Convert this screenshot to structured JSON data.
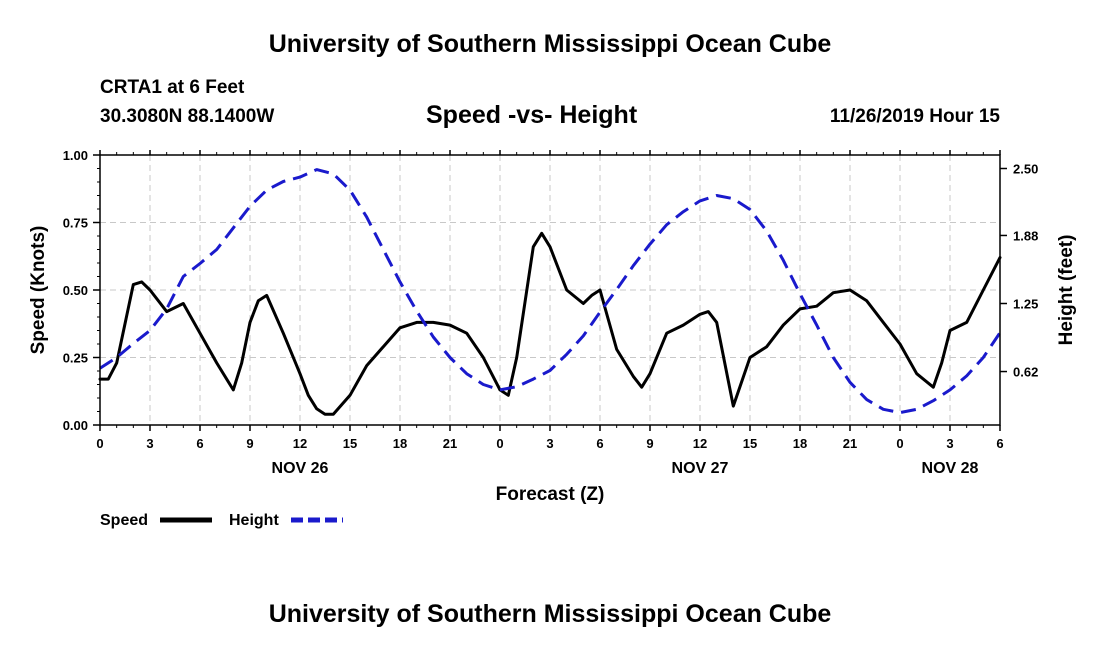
{
  "header": {
    "title": "University of Southern Mississippi Ocean Cube",
    "station": "CRTA1 at 6 Feet",
    "coords": "30.3080N 88.1400W",
    "timestamp": "11/26/2019 Hour 15"
  },
  "footer": {
    "title": "University of Southern Mississippi Ocean Cube"
  },
  "colors": {
    "speed": "#000000",
    "height": "#1a1acc",
    "grid": "#c8c8c8"
  },
  "chart_data": {
    "type": "line",
    "title": "Speed -vs- Height",
    "xlabel": "Forecast (Z)",
    "ylabel": "Speed (Knots)",
    "y2label": "Height (feet)",
    "xlim": [
      0,
      54
    ],
    "ylim": [
      0,
      1.0
    ],
    "y2lim": [
      0.125,
      2.625
    ],
    "x_ticks": [
      0,
      3,
      6,
      9,
      12,
      15,
      18,
      21,
      24,
      27,
      30,
      33,
      36,
      39,
      42,
      45,
      48,
      51,
      54
    ],
    "x_tick_labels": [
      "0",
      "3",
      "6",
      "9",
      "12",
      "15",
      "18",
      "21",
      "0",
      "3",
      "6",
      "9",
      "12",
      "15",
      "18",
      "21",
      "0",
      "3",
      "6"
    ],
    "y_ticks": [
      0,
      0.25,
      0.5,
      0.75,
      1.0
    ],
    "y_tick_labels": [
      "0.00",
      "0.25",
      "0.50",
      "0.75",
      "1.00"
    ],
    "y2_ticks": [
      0.62,
      1.25,
      1.88,
      2.5
    ],
    "y2_tick_labels": [
      "0.62",
      "1.25",
      "1.88",
      "2.50"
    ],
    "date_labels": [
      {
        "x": 12,
        "label": "NOV 26"
      },
      {
        "x": 36,
        "label": "NOV 27"
      },
      {
        "x": 51,
        "label": "NOV 28"
      }
    ],
    "grid": true,
    "legend": {
      "position": "bottom-left",
      "entries": [
        "Speed",
        "Height"
      ]
    },
    "series": [
      {
        "name": "Speed",
        "axis": "left",
        "style": "solid",
        "x": [
          0,
          0.5,
          1,
          2,
          2.5,
          3,
          4,
          5,
          6,
          7,
          8,
          8.5,
          9,
          9.5,
          10,
          11,
          12,
          12.5,
          13,
          13.5,
          14,
          15,
          16,
          17,
          18,
          19,
          20,
          21,
          22,
          23,
          24,
          24.5,
          25,
          26,
          26.5,
          27,
          28,
          29,
          29.5,
          30,
          31,
          32,
          32.5,
          33,
          34,
          35,
          36,
          36.5,
          37,
          38,
          39,
          39.5,
          40,
          41,
          42,
          43,
          44,
          45,
          46,
          47,
          48,
          49,
          50,
          50.5,
          51,
          52,
          53,
          54
        ],
        "values": [
          0.17,
          0.17,
          0.23,
          0.52,
          0.53,
          0.5,
          0.42,
          0.45,
          0.34,
          0.23,
          0.13,
          0.23,
          0.38,
          0.46,
          0.48,
          0.34,
          0.19,
          0.11,
          0.06,
          0.04,
          0.04,
          0.11,
          0.22,
          0.29,
          0.36,
          0.38,
          0.38,
          0.37,
          0.34,
          0.25,
          0.13,
          0.11,
          0.25,
          0.66,
          0.71,
          0.66,
          0.5,
          0.45,
          0.48,
          0.5,
          0.28,
          0.18,
          0.14,
          0.19,
          0.34,
          0.37,
          0.41,
          0.42,
          0.38,
          0.07,
          0.25,
          0.27,
          0.29,
          0.37,
          0.43,
          0.44,
          0.49,
          0.5,
          0.46,
          0.38,
          0.3,
          0.19,
          0.14,
          0.23,
          0.35,
          0.38,
          0.5,
          0.62
        ]
      },
      {
        "name": "Height",
        "axis": "right",
        "style": "dashed",
        "x": [
          0,
          1,
          2,
          3,
          4,
          5,
          6,
          7,
          8,
          9,
          10,
          11,
          12,
          13,
          14,
          15,
          16,
          17,
          18,
          19,
          20,
          21,
          22,
          23,
          24,
          25,
          26,
          27,
          28,
          29,
          30,
          31,
          32,
          33,
          34,
          35,
          36,
          37,
          38,
          39,
          40,
          41,
          42,
          43,
          44,
          45,
          46,
          47,
          48,
          49,
          50,
          51,
          52,
          53,
          54
        ],
        "values": [
          0.65,
          0.75,
          0.88,
          1.0,
          1.2,
          1.5,
          1.62,
          1.75,
          1.95,
          2.15,
          2.3,
          2.38,
          2.42,
          2.49,
          2.45,
          2.3,
          2.05,
          1.75,
          1.45,
          1.18,
          0.94,
          0.75,
          0.6,
          0.5,
          0.45,
          0.48,
          0.55,
          0.63,
          0.78,
          0.95,
          1.17,
          1.38,
          1.6,
          1.8,
          1.98,
          2.1,
          2.2,
          2.25,
          2.22,
          2.12,
          1.92,
          1.65,
          1.34,
          1.05,
          0.75,
          0.52,
          0.36,
          0.27,
          0.24,
          0.27,
          0.35,
          0.45,
          0.58,
          0.75,
          0.98
        ]
      }
    ]
  }
}
